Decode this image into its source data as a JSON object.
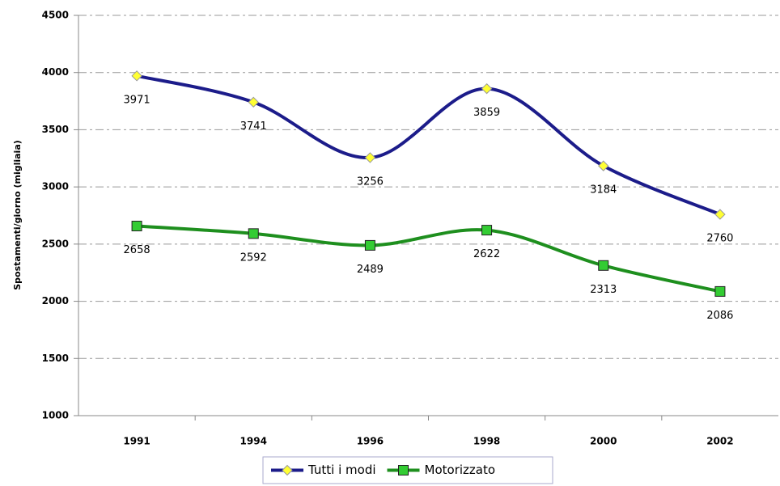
{
  "chart_data": {
    "type": "line",
    "y_label": "Spostamenti/giorno (migliaia)",
    "categories": [
      "1991",
      "1994",
      "1996",
      "1998",
      "2000",
      "2002"
    ],
    "series": [
      {
        "name": "Tutti i modi",
        "color": "#1c1c8a",
        "marker_color": "#ffff33",
        "marker": "diamond",
        "values": [
          3971,
          3741,
          3256,
          3859,
          3184,
          2760
        ]
      },
      {
        "name": "Motorizzato",
        "color": "#1e8f1e",
        "marker_color": "#33cc33",
        "marker": "square",
        "values": [
          2658,
          2592,
          2489,
          2622,
          2313,
          2086
        ]
      }
    ],
    "ylim": [
      1000,
      4500
    ],
    "yticks": [
      1000,
      1500,
      2000,
      2500,
      3000,
      3500,
      4000,
      4500
    ],
    "grid": true,
    "smooth": true,
    "legend": "bottom"
  }
}
